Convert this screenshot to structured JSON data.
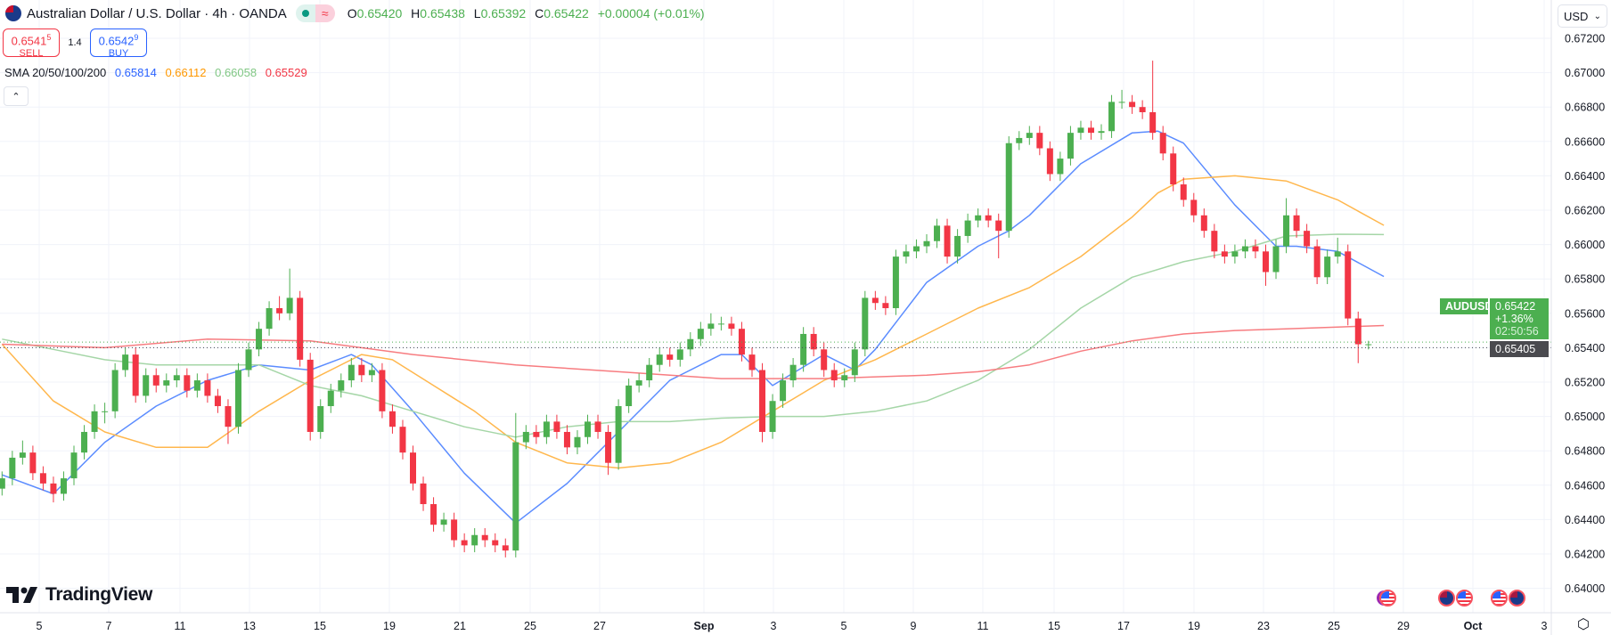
{
  "header": {
    "title": "Australian Dollar / U.S. Dollar · 4h · OANDA",
    "flag_icon": "aud-usd-flag-icon",
    "open_label": "O",
    "open": "0.65420",
    "high_label": "H",
    "high": "0.65438",
    "low_label": "L",
    "low": "0.65392",
    "close_label": "C",
    "close": "0.65422",
    "change": "+0.00004 (+0.01%)"
  },
  "trade": {
    "sell_price": "0.6541",
    "sell_sup": "5",
    "sell_label": "SELL",
    "spread": "1.4",
    "buy_price": "0.6542",
    "buy_sup": "9",
    "buy_label": "BUY"
  },
  "indicator": {
    "name": "SMA 20/50/100/200",
    "values": [
      "0.65814",
      "0.66112",
      "0.66058",
      "0.65529"
    ]
  },
  "currency": "USD",
  "logo": "TradingView",
  "price_labels": {
    "symbol": "AUDUSD",
    "last": "0.65422",
    "change": "+1.36%",
    "countdown": "02:50:56",
    "bid": "0.65405"
  },
  "colors": {
    "up": "#4caf50",
    "down": "#f23645",
    "sma20": "#2962ff",
    "sma50": "#ff9800",
    "sma100": "#81c784",
    "sma200": "#f23645",
    "last_price": "#4caf50",
    "bid_line": "#434651"
  },
  "events": [
    "us",
    "au",
    "us",
    "us",
    "au"
  ],
  "chart_data": {
    "type": "candlestick",
    "symbol": "AUDUSD",
    "interval": "4h",
    "ylim": [
      0.6395,
      0.6725
    ],
    "y_ticks": [
      "0.67200",
      "0.67000",
      "0.66800",
      "0.66600",
      "0.66400",
      "0.66200",
      "0.66000",
      "0.65800",
      "0.65600",
      "0.65400",
      "0.65200",
      "0.65000",
      "0.64800",
      "0.64600",
      "0.64400",
      "0.64200",
      "0.64000"
    ],
    "x_ticks": [
      "5",
      "7",
      "11",
      "13",
      "15",
      "19",
      "21",
      "25",
      "27",
      "Sep",
      "3",
      "5",
      "9",
      "11",
      "15",
      "17",
      "19",
      "23",
      "25",
      "29",
      "Oct",
      "3"
    ],
    "grid": true,
    "candles": [
      [
        0.6458,
        0.6468,
        0.6454,
        0.6464
      ],
      [
        0.6464,
        0.648,
        0.646,
        0.6476
      ],
      [
        0.6476,
        0.6486,
        0.6472,
        0.6479
      ],
      [
        0.6479,
        0.6483,
        0.6463,
        0.6467
      ],
      [
        0.6467,
        0.6471,
        0.6457,
        0.6461
      ],
      [
        0.6461,
        0.6465,
        0.645,
        0.6455
      ],
      [
        0.6455,
        0.6468,
        0.6451,
        0.6464
      ],
      [
        0.6464,
        0.6483,
        0.646,
        0.6479
      ],
      [
        0.6479,
        0.6495,
        0.6475,
        0.6491
      ],
      [
        0.6491,
        0.6507,
        0.6487,
        0.6503
      ],
      [
        0.6503,
        0.6508,
        0.6496,
        0.6503
      ],
      [
        0.6503,
        0.6531,
        0.6499,
        0.6527
      ],
      [
        0.6527,
        0.654,
        0.6523,
        0.6536
      ],
      [
        0.6536,
        0.654,
        0.6508,
        0.6512
      ],
      [
        0.6512,
        0.6528,
        0.6508,
        0.6524
      ],
      [
        0.6524,
        0.6528,
        0.6514,
        0.6518
      ],
      [
        0.6518,
        0.6525,
        0.6514,
        0.6521
      ],
      [
        0.6521,
        0.6528,
        0.6517,
        0.6524
      ],
      [
        0.6524,
        0.6528,
        0.6511,
        0.6515
      ],
      [
        0.6515,
        0.6525,
        0.6511,
        0.6521
      ],
      [
        0.6521,
        0.6525,
        0.6508,
        0.6512
      ],
      [
        0.6512,
        0.6516,
        0.6502,
        0.6506
      ],
      [
        0.6506,
        0.651,
        0.6484,
        0.6494
      ],
      [
        0.6494,
        0.6531,
        0.649,
        0.6527
      ],
      [
        0.6527,
        0.6543,
        0.6523,
        0.6539
      ],
      [
        0.6539,
        0.6555,
        0.6535,
        0.6551
      ],
      [
        0.6551,
        0.6567,
        0.6547,
        0.6563
      ],
      [
        0.6563,
        0.657,
        0.6556,
        0.656
      ],
      [
        0.656,
        0.6586,
        0.6556,
        0.6569
      ],
      [
        0.6569,
        0.6573,
        0.6529,
        0.6533
      ],
      [
        0.6533,
        0.6537,
        0.6486,
        0.6491
      ],
      [
        0.6491,
        0.651,
        0.6487,
        0.6506
      ],
      [
        0.6506,
        0.6519,
        0.6502,
        0.6515
      ],
      [
        0.6515,
        0.6525,
        0.6511,
        0.6521
      ],
      [
        0.6521,
        0.6534,
        0.6517,
        0.653
      ],
      [
        0.653,
        0.6534,
        0.652,
        0.6524
      ],
      [
        0.6524,
        0.6531,
        0.652,
        0.6527
      ],
      [
        0.6527,
        0.6531,
        0.6499,
        0.6503
      ],
      [
        0.6503,
        0.6507,
        0.649,
        0.6494
      ],
      [
        0.6494,
        0.6498,
        0.6475,
        0.6479
      ],
      [
        0.6479,
        0.6483,
        0.6457,
        0.6461
      ],
      [
        0.6461,
        0.6465,
        0.6445,
        0.6449
      ],
      [
        0.6449,
        0.6453,
        0.6433,
        0.6437
      ],
      [
        0.6437,
        0.6444,
        0.6433,
        0.644
      ],
      [
        0.644,
        0.6444,
        0.6424,
        0.6428
      ],
      [
        0.6428,
        0.6432,
        0.6421,
        0.6425
      ],
      [
        0.6425,
        0.6435,
        0.6421,
        0.6431
      ],
      [
        0.6431,
        0.6435,
        0.6424,
        0.6428
      ],
      [
        0.6428,
        0.6432,
        0.6421,
        0.6425
      ],
      [
        0.6425,
        0.6429,
        0.6418,
        0.6422
      ],
      [
        0.6422,
        0.6502,
        0.6418,
        0.6485
      ],
      [
        0.6485,
        0.6495,
        0.6481,
        0.6491
      ],
      [
        0.6491,
        0.6495,
        0.6484,
        0.6488
      ],
      [
        0.6488,
        0.6501,
        0.6484,
        0.6497
      ],
      [
        0.6497,
        0.6501,
        0.6487,
        0.6491
      ],
      [
        0.6491,
        0.6495,
        0.6478,
        0.6482
      ],
      [
        0.6482,
        0.6492,
        0.6478,
        0.6488
      ],
      [
        0.6488,
        0.6501,
        0.6484,
        0.6497
      ],
      [
        0.6497,
        0.6501,
        0.6487,
        0.6491
      ],
      [
        0.6491,
        0.6495,
        0.6466,
        0.6473
      ],
      [
        0.6473,
        0.651,
        0.6469,
        0.6506
      ],
      [
        0.6506,
        0.6522,
        0.6502,
        0.6518
      ],
      [
        0.6518,
        0.6525,
        0.6514,
        0.6521
      ],
      [
        0.6521,
        0.6534,
        0.6517,
        0.653
      ],
      [
        0.653,
        0.654,
        0.6526,
        0.6536
      ],
      [
        0.6536,
        0.654,
        0.6529,
        0.6533
      ],
      [
        0.6533,
        0.6543,
        0.6529,
        0.6539
      ],
      [
        0.6539,
        0.6549,
        0.6535,
        0.6545
      ],
      [
        0.6545,
        0.6555,
        0.6541,
        0.6551
      ],
      [
        0.6551,
        0.656,
        0.6547,
        0.6554
      ],
      [
        0.6554,
        0.6558,
        0.655,
        0.6554
      ],
      [
        0.6554,
        0.6558,
        0.6547,
        0.6551
      ],
      [
        0.6551,
        0.6555,
        0.6532,
        0.6536
      ],
      [
        0.6536,
        0.654,
        0.6523,
        0.6527
      ],
      [
        0.6527,
        0.6531,
        0.6485,
        0.6491
      ],
      [
        0.6491,
        0.6513,
        0.6487,
        0.6509
      ],
      [
        0.6509,
        0.6525,
        0.6505,
        0.6521
      ],
      [
        0.6521,
        0.6534,
        0.6517,
        0.653
      ],
      [
        0.653,
        0.6552,
        0.6526,
        0.6548
      ],
      [
        0.6548,
        0.6552,
        0.6535,
        0.6539
      ],
      [
        0.6539,
        0.6543,
        0.6523,
        0.6527
      ],
      [
        0.6527,
        0.6531,
        0.6517,
        0.6521
      ],
      [
        0.6521,
        0.6528,
        0.6517,
        0.6524
      ],
      [
        0.6524,
        0.6543,
        0.652,
        0.6539
      ],
      [
        0.6539,
        0.6573,
        0.6535,
        0.6569
      ],
      [
        0.6569,
        0.6573,
        0.6562,
        0.6566
      ],
      [
        0.6566,
        0.657,
        0.6559,
        0.6563
      ],
      [
        0.6563,
        0.6597,
        0.6559,
        0.6593
      ],
      [
        0.6593,
        0.66,
        0.6589,
        0.6596
      ],
      [
        0.6596,
        0.6603,
        0.6592,
        0.6599
      ],
      [
        0.6599,
        0.6606,
        0.6595,
        0.6602
      ],
      [
        0.6602,
        0.6615,
        0.6598,
        0.6611
      ],
      [
        0.6611,
        0.6615,
        0.6589,
        0.6593
      ],
      [
        0.6593,
        0.6609,
        0.6589,
        0.6605
      ],
      [
        0.6605,
        0.6618,
        0.6601,
        0.6614
      ],
      [
        0.6614,
        0.6621,
        0.661,
        0.6617
      ],
      [
        0.6617,
        0.6621,
        0.661,
        0.6614
      ],
      [
        0.6614,
        0.6618,
        0.6592,
        0.6608
      ],
      [
        0.6608,
        0.6663,
        0.6604,
        0.6659
      ],
      [
        0.6659,
        0.6666,
        0.6655,
        0.6662
      ],
      [
        0.6662,
        0.6669,
        0.6658,
        0.6665
      ],
      [
        0.6665,
        0.6669,
        0.6652,
        0.6656
      ],
      [
        0.6656,
        0.666,
        0.6637,
        0.6641
      ],
      [
        0.6641,
        0.6654,
        0.6637,
        0.665
      ],
      [
        0.665,
        0.6669,
        0.6646,
        0.6665
      ],
      [
        0.6665,
        0.6672,
        0.6661,
        0.6668
      ],
      [
        0.6668,
        0.6672,
        0.6661,
        0.6665
      ],
      [
        0.6665,
        0.667,
        0.6661,
        0.6666
      ],
      [
        0.6666,
        0.6687,
        0.6662,
        0.6683
      ],
      [
        0.6683,
        0.669,
        0.6679,
        0.6683
      ],
      [
        0.6683,
        0.6687,
        0.6676,
        0.668
      ],
      [
        0.668,
        0.6684,
        0.6673,
        0.6677
      ],
      [
        0.6677,
        0.6707,
        0.6661,
        0.6665
      ],
      [
        0.6665,
        0.6669,
        0.6649,
        0.6653
      ],
      [
        0.6653,
        0.6657,
        0.6631,
        0.6635
      ],
      [
        0.6635,
        0.6639,
        0.6622,
        0.6626
      ],
      [
        0.6626,
        0.663,
        0.6613,
        0.6617
      ],
      [
        0.6617,
        0.6621,
        0.6604,
        0.6608
      ],
      [
        0.6608,
        0.6612,
        0.6592,
        0.6596
      ],
      [
        0.6596,
        0.66,
        0.6589,
        0.6593
      ],
      [
        0.6593,
        0.66,
        0.6589,
        0.6596
      ],
      [
        0.6596,
        0.6603,
        0.6592,
        0.6599
      ],
      [
        0.6599,
        0.6603,
        0.6592,
        0.6596
      ],
      [
        0.6596,
        0.66,
        0.6576,
        0.6584
      ],
      [
        0.6584,
        0.6603,
        0.658,
        0.6599
      ],
      [
        0.6599,
        0.6627,
        0.6595,
        0.6617
      ],
      [
        0.6617,
        0.6621,
        0.6604,
        0.6608
      ],
      [
        0.6608,
        0.6612,
        0.6595,
        0.6599
      ],
      [
        0.6599,
        0.6603,
        0.6577,
        0.6581
      ],
      [
        0.6581,
        0.6597,
        0.6577,
        0.6593
      ],
      [
        0.6593,
        0.6604,
        0.6589,
        0.6596
      ],
      [
        0.6596,
        0.66,
        0.6553,
        0.6557
      ],
      [
        0.6557,
        0.6561,
        0.6531,
        0.6542
      ],
      [
        0.6542,
        0.6544,
        0.6539,
        0.6542
      ]
    ],
    "sma": [
      {
        "period": 20,
        "color": "#5b8cff",
        "points": [
          [
            0,
            0.6466
          ],
          [
            5,
            0.6455
          ],
          [
            10,
            0.6485
          ],
          [
            15,
            0.6506
          ],
          [
            20,
            0.6521
          ],
          [
            25,
            0.653
          ],
          [
            30,
            0.6527
          ],
          [
            34,
            0.6536
          ],
          [
            36,
            0.653
          ],
          [
            40,
            0.6503
          ],
          [
            45,
            0.6467
          ],
          [
            50,
            0.6438
          ],
          [
            55,
            0.6461
          ],
          [
            60,
            0.6491
          ],
          [
            65,
            0.6521
          ],
          [
            70,
            0.6536
          ],
          [
            72,
            0.6536
          ],
          [
            75,
            0.6518
          ],
          [
            80,
            0.6536
          ],
          [
            83,
            0.6527
          ],
          [
            85,
            0.6539
          ],
          [
            90,
            0.6578
          ],
          [
            95,
            0.6599
          ],
          [
            98,
            0.6608
          ],
          [
            100,
            0.6617
          ],
          [
            105,
            0.6647
          ],
          [
            110,
            0.6665
          ],
          [
            112.5,
            0.6666
          ],
          [
            115,
            0.6659
          ],
          [
            120,
            0.6623
          ],
          [
            124,
            0.6599
          ],
          [
            126,
            0.6599
          ],
          [
            130,
            0.6596
          ],
          [
            134.5,
            0.65814
          ]
        ]
      },
      {
        "period": 50,
        "color": "#ffb74d",
        "points": [
          [
            0,
            0.6542
          ],
          [
            5,
            0.6509
          ],
          [
            10,
            0.6491
          ],
          [
            15,
            0.6482
          ],
          [
            20,
            0.6482
          ],
          [
            25,
            0.6503
          ],
          [
            30,
            0.6521
          ],
          [
            35,
            0.6536
          ],
          [
            38,
            0.6533
          ],
          [
            42,
            0.6518
          ],
          [
            46,
            0.6503
          ],
          [
            50,
            0.6485
          ],
          [
            55,
            0.6473
          ],
          [
            60,
            0.647
          ],
          [
            65,
            0.6473
          ],
          [
            70,
            0.6485
          ],
          [
            75,
            0.6503
          ],
          [
            80,
            0.6521
          ],
          [
            85,
            0.6533
          ],
          [
            90,
            0.6548
          ],
          [
            95,
            0.6563
          ],
          [
            100,
            0.6575
          ],
          [
            105,
            0.6593
          ],
          [
            110,
            0.6616
          ],
          [
            112.5,
            0.663
          ],
          [
            115,
            0.6638
          ],
          [
            120,
            0.664
          ],
          [
            125,
            0.6637
          ],
          [
            130,
            0.6626
          ],
          [
            134.5,
            0.66112
          ]
        ]
      },
      {
        "period": 100,
        "color": "#a5d6a7",
        "points": [
          [
            0,
            0.6545
          ],
          [
            5,
            0.6539
          ],
          [
            10,
            0.6533
          ],
          [
            15,
            0.653
          ],
          [
            20,
            0.653
          ],
          [
            25,
            0.653
          ],
          [
            30,
            0.6518
          ],
          [
            35,
            0.6512
          ],
          [
            40,
            0.6503
          ],
          [
            45,
            0.6494
          ],
          [
            50,
            0.6488
          ],
          [
            55,
            0.6494
          ],
          [
            60,
            0.6497
          ],
          [
            65,
            0.6497
          ],
          [
            70,
            0.6499
          ],
          [
            75,
            0.65
          ],
          [
            80,
            0.65
          ],
          [
            85,
            0.6503
          ],
          [
            90,
            0.6509
          ],
          [
            95,
            0.6521
          ],
          [
            100,
            0.6539
          ],
          [
            105,
            0.6563
          ],
          [
            110,
            0.6581
          ],
          [
            115,
            0.659
          ],
          [
            120,
            0.6596
          ],
          [
            125,
            0.6605
          ],
          [
            130,
            0.6606
          ],
          [
            134.5,
            0.66058
          ]
        ]
      },
      {
        "period": 200,
        "color": "#f77c80",
        "points": [
          [
            0,
            0.6542
          ],
          [
            10,
            0.654
          ],
          [
            20,
            0.6545
          ],
          [
            30,
            0.6544
          ],
          [
            40,
            0.6536
          ],
          [
            50,
            0.653
          ],
          [
            60,
            0.6526
          ],
          [
            70,
            0.6522
          ],
          [
            80,
            0.6522
          ],
          [
            90,
            0.6524
          ],
          [
            95,
            0.6526
          ],
          [
            100,
            0.653
          ],
          [
            105,
            0.6538
          ],
          [
            110,
            0.6544
          ],
          [
            115,
            0.6548
          ],
          [
            120,
            0.655
          ],
          [
            125,
            0.6551
          ],
          [
            130,
            0.6552
          ],
          [
            134.5,
            0.65529
          ]
        ]
      }
    ],
    "last_price": 0.65422,
    "bid_price": 0.65405
  }
}
